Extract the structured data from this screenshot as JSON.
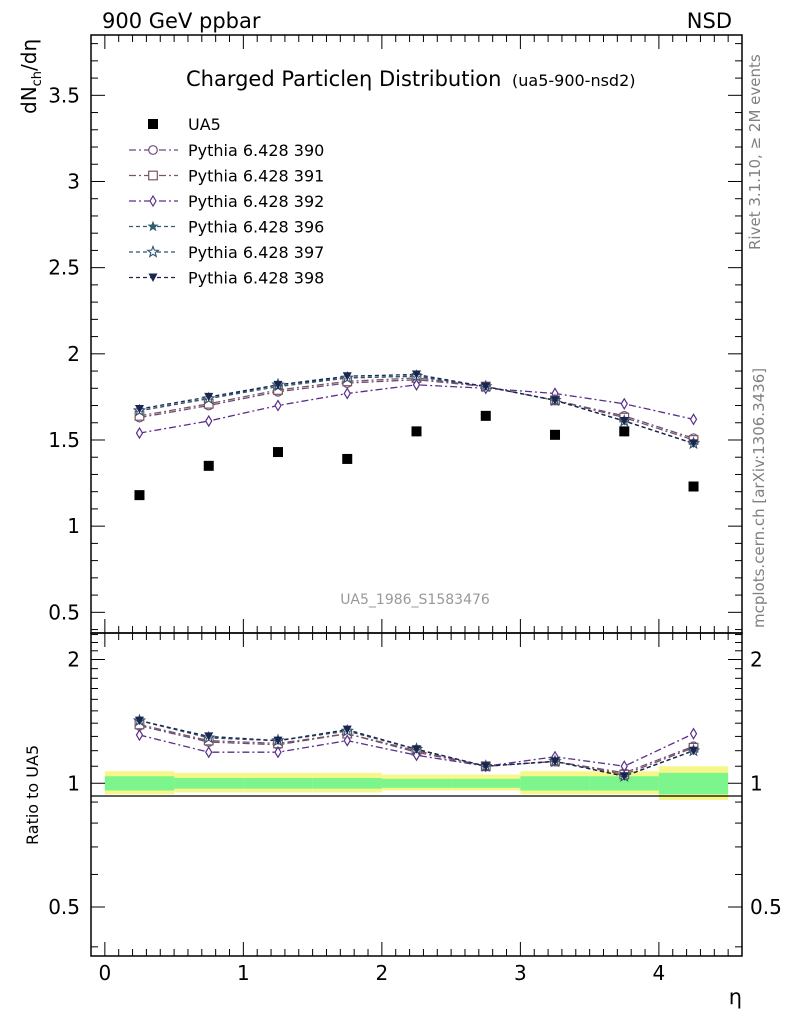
{
  "header": {
    "left": "900 GeV ppbar",
    "right": "NSD"
  },
  "side_text": {
    "rivet": "Rivet 3.1.10, ≥ 2M events",
    "mcplots": "mcplots.cern.ch [arXiv:1306.3436]"
  },
  "colors": {
    "p390": "#6b4a80",
    "p391": "#7a5560",
    "p392": "#5b2e8c",
    "p396": "#2f5d70",
    "p397": "#2f5570",
    "p398": "#1a2550",
    "data": "#000000",
    "band_inner": "#7cf58c",
    "band_outer": "#f6f788"
  },
  "chart_data": [
    {
      "type": "scatter",
      "title": "Charged Particleη Distribution",
      "title_tag": "(ua5-900-nsd2)",
      "watermark": "UA5_1986_S1583476",
      "ylabel": "dN_ch/dη",
      "xlim": [
        -0.1,
        4.6
      ],
      "ylim": [
        0.38,
        3.85
      ],
      "yticks": [
        0.5,
        1,
        1.5,
        2,
        2.5,
        3,
        3.5
      ],
      "ytick_labels": [
        "0.5",
        "1",
        "1.5",
        "2",
        "2.5",
        "3",
        "3.5"
      ],
      "legend_position": "top-left",
      "x": [
        0.25,
        0.75,
        1.25,
        1.75,
        2.25,
        2.75,
        3.25,
        3.75,
        4.25
      ],
      "data": {
        "name": "UA5",
        "values": [
          1.18,
          1.35,
          1.43,
          1.39,
          1.55,
          1.64,
          1.53,
          1.55,
          1.23
        ]
      },
      "series": [
        {
          "name": "Pythia 6.428 390",
          "key": "p390",
          "marker": "circle-open",
          "values": [
            1.63,
            1.7,
            1.78,
            1.83,
            1.85,
            1.81,
            1.73,
            1.64,
            1.51
          ]
        },
        {
          "name": "Pythia 6.428 391",
          "key": "p391",
          "marker": "square-open",
          "values": [
            1.64,
            1.71,
            1.79,
            1.84,
            1.86,
            1.81,
            1.73,
            1.63,
            1.5
          ]
        },
        {
          "name": "Pythia 6.428 392",
          "key": "p392",
          "marker": "diamond-open",
          "values": [
            1.54,
            1.61,
            1.7,
            1.77,
            1.82,
            1.8,
            1.77,
            1.71,
            1.62
          ]
        },
        {
          "name": "Pythia 6.428 396",
          "key": "p396",
          "marker": "star-filled",
          "values": [
            1.67,
            1.74,
            1.81,
            1.86,
            1.87,
            1.81,
            1.73,
            1.61,
            1.48
          ]
        },
        {
          "name": "Pythia 6.428 397",
          "key": "p397",
          "marker": "star-open",
          "values": [
            1.67,
            1.74,
            1.82,
            1.86,
            1.87,
            1.81,
            1.73,
            1.61,
            1.48
          ]
        },
        {
          "name": "Pythia 6.428 398",
          "key": "p398",
          "marker": "triangle-down-filled",
          "values": [
            1.68,
            1.75,
            1.82,
            1.87,
            1.88,
            1.81,
            1.73,
            1.61,
            1.48
          ]
        }
      ]
    },
    {
      "type": "scatter",
      "ylabel": "Ratio to UA5",
      "xlabel": "η",
      "xlim": [
        -0.1,
        4.6
      ],
      "ylim": [
        0.38,
        2.32
      ],
      "log_y": true,
      "xticks": [
        0,
        1,
        2,
        3,
        4
      ],
      "xtick_labels": [
        "0",
        "1",
        "2",
        "3",
        "4"
      ],
      "yticks": [
        0.5,
        1,
        2
      ],
      "ytick_labels": [
        "0.5",
        "1",
        "2"
      ],
      "x": [
        0.25,
        0.75,
        1.25,
        1.75,
        2.25,
        2.75,
        3.25,
        3.75,
        4.25
      ],
      "band_edges": [
        0,
        0.5,
        1,
        1.5,
        2,
        2.5,
        3,
        3.5,
        4,
        4.5
      ],
      "band_inner": [
        [
          0.96,
          1.04
        ],
        [
          0.97,
          1.03
        ],
        [
          0.97,
          1.03
        ],
        [
          0.97,
          1.03
        ],
        [
          0.975,
          1.025
        ],
        [
          0.975,
          1.025
        ],
        [
          0.96,
          1.04
        ],
        [
          0.96,
          1.04
        ],
        [
          0.94,
          1.06
        ]
      ],
      "band_outer": [
        [
          0.94,
          1.07
        ],
        [
          0.95,
          1.06
        ],
        [
          0.95,
          1.06
        ],
        [
          0.95,
          1.06
        ],
        [
          0.96,
          1.05
        ],
        [
          0.96,
          1.05
        ],
        [
          0.94,
          1.07
        ],
        [
          0.94,
          1.07
        ],
        [
          0.91,
          1.1
        ]
      ],
      "series": [
        {
          "name": "Pythia 6.428 390",
          "key": "p390",
          "marker": "circle-open",
          "values": [
            1.38,
            1.26,
            1.24,
            1.32,
            1.19,
            1.1,
            1.13,
            1.06,
            1.23
          ]
        },
        {
          "name": "Pythia 6.428 391",
          "key": "p391",
          "marker": "square-open",
          "values": [
            1.39,
            1.27,
            1.25,
            1.32,
            1.2,
            1.1,
            1.13,
            1.05,
            1.22
          ]
        },
        {
          "name": "Pythia 6.428 392",
          "key": "p392",
          "marker": "diamond-open",
          "values": [
            1.31,
            1.19,
            1.19,
            1.27,
            1.17,
            1.1,
            1.16,
            1.1,
            1.32
          ]
        },
        {
          "name": "Pythia 6.428 396",
          "key": "p396",
          "marker": "star-filled",
          "values": [
            1.42,
            1.29,
            1.27,
            1.34,
            1.21,
            1.1,
            1.13,
            1.04,
            1.2
          ]
        },
        {
          "name": "Pythia 6.428 397",
          "key": "p397",
          "marker": "star-open",
          "values": [
            1.42,
            1.29,
            1.27,
            1.34,
            1.21,
            1.1,
            1.13,
            1.04,
            1.2
          ]
        },
        {
          "name": "Pythia 6.428 398",
          "key": "p398",
          "marker": "triangle-down-filled",
          "values": [
            1.42,
            1.3,
            1.27,
            1.35,
            1.21,
            1.1,
            1.13,
            1.04,
            1.2
          ]
        }
      ]
    }
  ]
}
